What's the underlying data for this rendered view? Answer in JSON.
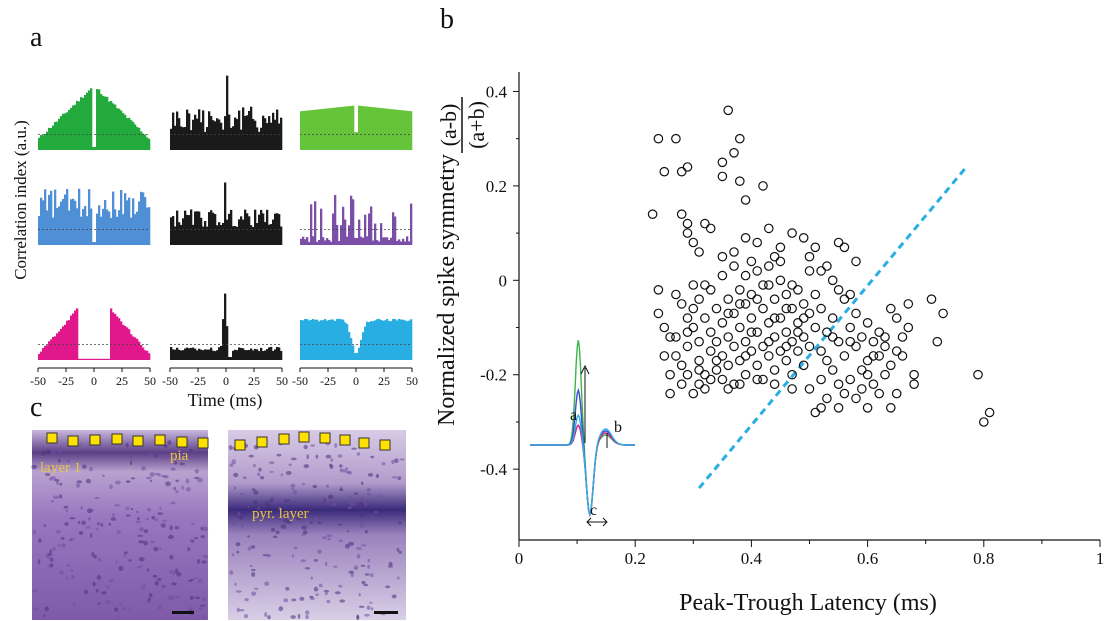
{
  "figure": {
    "panel_labels": {
      "a": "a",
      "b": "b",
      "c": "c"
    },
    "colors": {
      "green": "#22aa3c",
      "black": "#1a1a1a",
      "light_green": "#66c43a",
      "blue": "#4e8fd6",
      "purple": "#7b4fa8",
      "magenta": "#e0188c",
      "cyan": "#29aee3",
      "fit_line": "#29aee3",
      "histology": "#8e6fb8",
      "marker": "#ffe100"
    }
  },
  "panel_a": {
    "ylabel": "Correlation index (a.u.)",
    "xlabel": "Time (ms)",
    "tick_labels": [
      "-50",
      "-25",
      "0",
      "25",
      "50"
    ],
    "grid": [
      {
        "row": 0,
        "col": 0,
        "color": "green",
        "shape": "peak-notch"
      },
      {
        "row": 0,
        "col": 1,
        "color": "black",
        "shape": "noisy"
      },
      {
        "row": 0,
        "col": 2,
        "color": "light_green",
        "shape": "flat-notch"
      },
      {
        "row": 1,
        "col": 0,
        "color": "blue",
        "shape": "noisy-notch"
      },
      {
        "row": 1,
        "col": 1,
        "color": "black",
        "shape": "noisy-peak"
      },
      {
        "row": 1,
        "col": 2,
        "color": "purple",
        "shape": "sparse"
      },
      {
        "row": 2,
        "col": 0,
        "color": "magenta",
        "shape": "trough-wide"
      },
      {
        "row": 2,
        "col": 1,
        "color": "black",
        "shape": "sharp-peak"
      },
      {
        "row": 2,
        "col": 2,
        "color": "cyan",
        "shape": "trough-narrow"
      }
    ]
  },
  "panel_c": {
    "labels": [
      "layer 1",
      "pia",
      "pyr. layer"
    ]
  },
  "chart_data": {
    "type": "scatter",
    "title": "",
    "xlabel": "Peak-Trough Latency (ms)",
    "ylabel": "Normalized spike symmetry",
    "ylabel_formula": {
      "numerator": "(a-b)",
      "denominator": "(a+b)"
    },
    "xlim": [
      0,
      1
    ],
    "ylim": [
      -0.55,
      0.42
    ],
    "x_ticks": [
      "0",
      "0.2",
      "0.4",
      "0.6",
      "0.8",
      "1"
    ],
    "y_ticks": [
      "0.4",
      "0.2",
      "0",
      "-0.2",
      "-0.4"
    ],
    "fit_line": {
      "x": [
        0.31,
        0.77
      ],
      "y": [
        -0.44,
        0.24
      ]
    },
    "inset_labels": {
      "a": "a",
      "b": "b",
      "c": "c"
    },
    "points": [
      [
        0.23,
        0.14
      ],
      [
        0.24,
        0.3
      ],
      [
        0.25,
        0.23
      ],
      [
        0.27,
        0.3
      ],
      [
        0.28,
        0.23
      ],
      [
        0.29,
        0.24
      ],
      [
        0.28,
        0.14
      ],
      [
        0.29,
        0.12
      ],
      [
        0.29,
        0.1
      ],
      [
        0.3,
        0.08
      ],
      [
        0.31,
        0.06
      ],
      [
        0.32,
        0.12
      ],
      [
        0.33,
        0.11
      ],
      [
        0.35,
        0.25
      ],
      [
        0.36,
        0.36
      ],
      [
        0.35,
        0.22
      ],
      [
        0.37,
        0.27
      ],
      [
        0.38,
        0.3
      ],
      [
        0.38,
        0.21
      ],
      [
        0.39,
        0.17
      ],
      [
        0.39,
        0.09
      ],
      [
        0.41,
        0.08
      ],
      [
        0.42,
        0.2
      ],
      [
        0.43,
        0.11
      ],
      [
        0.44,
        0.05
      ],
      [
        0.45,
        0.07
      ],
      [
        0.47,
        0.1
      ],
      [
        0.49,
        0.09
      ],
      [
        0.5,
        0.05
      ],
      [
        0.51,
        0.07
      ],
      [
        0.52,
        0.02
      ],
      [
        0.54,
        0.0
      ],
      [
        0.55,
        0.08
      ],
      [
        0.56,
        0.07
      ],
      [
        0.58,
        0.04
      ],
      [
        0.24,
        -0.02
      ],
      [
        0.24,
        -0.07
      ],
      [
        0.25,
        -0.1
      ],
      [
        0.25,
        -0.16
      ],
      [
        0.26,
        -0.2
      ],
      [
        0.26,
        -0.24
      ],
      [
        0.27,
        -0.03
      ],
      [
        0.27,
        -0.12
      ],
      [
        0.28,
        -0.05
      ],
      [
        0.28,
        -0.18
      ],
      [
        0.28,
        -0.22
      ],
      [
        0.29,
        -0.08
      ],
      [
        0.29,
        -0.14
      ],
      [
        0.29,
        -0.2
      ],
      [
        0.3,
        -0.01
      ],
      [
        0.3,
        -0.1
      ],
      [
        0.3,
        -0.24
      ],
      [
        0.31,
        -0.04
      ],
      [
        0.31,
        -0.13
      ],
      [
        0.31,
        -0.17
      ],
      [
        0.32,
        -0.08
      ],
      [
        0.32,
        -0.2
      ],
      [
        0.32,
        -0.23
      ],
      [
        0.33,
        -0.02
      ],
      [
        0.33,
        -0.11
      ],
      [
        0.33,
        -0.15
      ],
      [
        0.34,
        -0.06
      ],
      [
        0.34,
        -0.19
      ],
      [
        0.35,
        0.01
      ],
      [
        0.35,
        -0.09
      ],
      [
        0.35,
        -0.16
      ],
      [
        0.35,
        -0.21
      ],
      [
        0.36,
        -0.04
      ],
      [
        0.36,
        -0.12
      ],
      [
        0.36,
        -0.18
      ],
      [
        0.37,
        0.03
      ],
      [
        0.37,
        -0.07
      ],
      [
        0.37,
        -0.14
      ],
      [
        0.37,
        -0.22
      ],
      [
        0.38,
        -0.02
      ],
      [
        0.38,
        -0.1
      ],
      [
        0.38,
        -0.17
      ],
      [
        0.39,
        0.01
      ],
      [
        0.39,
        -0.05
      ],
      [
        0.39,
        -0.13
      ],
      [
        0.39,
        -0.2
      ],
      [
        0.4,
        -0.03
      ],
      [
        0.4,
        -0.08
      ],
      [
        0.4,
        -0.15
      ],
      [
        0.41,
        0.02
      ],
      [
        0.41,
        -0.11
      ],
      [
        0.41,
        -0.18
      ],
      [
        0.42,
        -0.06
      ],
      [
        0.42,
        -0.14
      ],
      [
        0.42,
        -0.21
      ],
      [
        0.43,
        -0.01
      ],
      [
        0.43,
        -0.09
      ],
      [
        0.43,
        -0.16
      ],
      [
        0.44,
        -0.04
      ],
      [
        0.44,
        -0.12
      ],
      [
        0.44,
        -0.19
      ],
      [
        0.45,
        0.0
      ],
      [
        0.45,
        -0.08
      ],
      [
        0.45,
        -0.15
      ],
      [
        0.46,
        -0.03
      ],
      [
        0.46,
        -0.11
      ],
      [
        0.46,
        -0.17
      ],
      [
        0.47,
        -0.06
      ],
      [
        0.47,
        -0.13
      ],
      [
        0.47,
        -0.2
      ],
      [
        0.48,
        -0.02
      ],
      [
        0.48,
        -0.09
      ],
      [
        0.48,
        -0.15
      ],
      [
        0.49,
        -0.05
      ],
      [
        0.49,
        -0.12
      ],
      [
        0.49,
        -0.18
      ],
      [
        0.5,
        -0.07
      ],
      [
        0.5,
        -0.14
      ],
      [
        0.5,
        -0.23
      ],
      [
        0.51,
        -0.03
      ],
      [
        0.51,
        -0.1
      ],
      [
        0.51,
        -0.28
      ],
      [
        0.52,
        -0.06
      ],
      [
        0.52,
        -0.15
      ],
      [
        0.52,
        -0.27
      ],
      [
        0.53,
        -0.11
      ],
      [
        0.53,
        -0.25
      ],
      [
        0.54,
        -0.08
      ],
      [
        0.54,
        -0.19
      ],
      [
        0.55,
        -0.13
      ],
      [
        0.55,
        -0.22
      ],
      [
        0.56,
        -0.04
      ],
      [
        0.56,
        -0.16
      ],
      [
        0.57,
        -0.1
      ],
      [
        0.57,
        -0.21
      ],
      [
        0.58,
        -0.07
      ],
      [
        0.58,
        -0.14
      ],
      [
        0.58,
        -0.25
      ],
      [
        0.59,
        -0.12
      ],
      [
        0.59,
        -0.19
      ],
      [
        0.6,
        -0.09
      ],
      [
        0.6,
        -0.17
      ],
      [
        0.6,
        -0.27
      ],
      [
        0.61,
        -0.13
      ],
      [
        0.61,
        -0.22
      ],
      [
        0.62,
        -0.11
      ],
      [
        0.62,
        -0.16
      ],
      [
        0.63,
        -0.14
      ],
      [
        0.63,
        -0.2
      ],
      [
        0.64,
        -0.06
      ],
      [
        0.64,
        -0.18
      ],
      [
        0.65,
        -0.08
      ],
      [
        0.65,
        -0.24
      ],
      [
        0.66,
        -0.12
      ],
      [
        0.66,
        -0.16
      ],
      [
        0.67,
        -0.05
      ],
      [
        0.67,
        -0.1
      ],
      [
        0.68,
        -0.2
      ],
      [
        0.68,
        -0.22
      ],
      [
        0.71,
        -0.04
      ],
      [
        0.72,
        -0.13
      ],
      [
        0.73,
        -0.07
      ],
      [
        0.79,
        -0.2
      ],
      [
        0.8,
        -0.3
      ],
      [
        0.81,
        -0.28
      ],
      [
        0.3,
        -0.06
      ],
      [
        0.32,
        -0.01
      ],
      [
        0.34,
        -0.13
      ],
      [
        0.36,
        -0.07
      ],
      [
        0.38,
        -0.05
      ],
      [
        0.4,
        -0.11
      ],
      [
        0.42,
        -0.01
      ],
      [
        0.44,
        -0.08
      ],
      [
        0.46,
        -0.14
      ],
      [
        0.48,
        -0.11
      ],
      [
        0.35,
        0.05
      ],
      [
        0.37,
        0.06
      ],
      [
        0.4,
        0.04
      ],
      [
        0.43,
        0.03
      ],
      [
        0.45,
        0.04
      ],
      [
        0.47,
        -0.01
      ],
      [
        0.5,
        0.02
      ],
      [
        0.53,
        0.03
      ],
      [
        0.55,
        -0.02
      ],
      [
        0.57,
        -0.03
      ],
      [
        0.31,
        -0.19
      ],
      [
        0.33,
        -0.21
      ],
      [
        0.36,
        -0.23
      ],
      [
        0.38,
        -0.22
      ],
      [
        0.41,
        -0.21
      ],
      [
        0.44,
        -0.22
      ],
      [
        0.47,
        -0.23
      ],
      [
        0.52,
        -0.21
      ],
      [
        0.56,
        -0.24
      ],
      [
        0.59,
        -0.23
      ],
      [
        0.27,
        -0.16
      ],
      [
        0.29,
        -0.11
      ],
      [
        0.31,
        -0.22
      ],
      [
        0.34,
        -0.17
      ],
      [
        0.39,
        -0.16
      ],
      [
        0.43,
        -0.13
      ],
      [
        0.46,
        -0.06
      ],
      [
        0.49,
        -0.08
      ],
      [
        0.54,
        -0.12
      ],
      [
        0.61,
        -0.16
      ],
      [
        0.26,
        -0.12
      ],
      [
        0.41,
        -0.04
      ],
      [
        0.53,
        -0.17
      ],
      [
        0.57,
        -0.13
      ],
      [
        0.63,
        -0.12
      ],
      [
        0.65,
        -0.15
      ],
      [
        0.62,
        -0.24
      ],
      [
        0.64,
        -0.27
      ],
      [
        0.6,
        -0.2
      ],
      [
        0.55,
        -0.27
      ]
    ]
  }
}
